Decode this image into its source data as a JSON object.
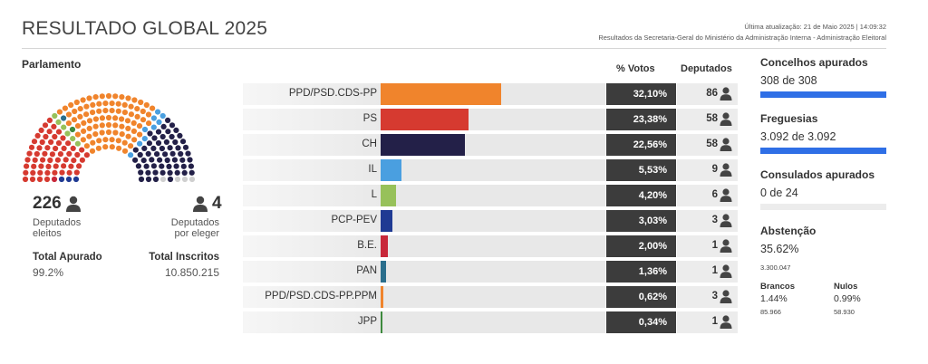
{
  "header": {
    "title": "RESULTADO GLOBAL 2025",
    "last_update": "Última atualização: 21 de Maio 2025 | 14:09:32",
    "source": "Resultados da Secretaria-Geral do Ministério da Administração Interna - Administração Eleitoral"
  },
  "parliament": {
    "title": "Parlamento",
    "elected_count": "226",
    "elected_label_1": "Deputados",
    "elected_label_2": "eleitos",
    "pending_count": "4",
    "pending_label_1": "Deputados",
    "pending_label_2": "por eleger",
    "total_apurado_label": "Total Apurado",
    "total_apurado_value": "99.2%",
    "total_inscritos_label": "Total Inscritos",
    "total_inscritos_value": "10.850.215",
    "seat_groups": [
      {
        "party": "PCP-PEV",
        "seats": 3,
        "color": "#1f3a93"
      },
      {
        "party": "B.E.",
        "seats": 1,
        "color": "#c8283a"
      },
      {
        "party": "PS",
        "seats": 58,
        "color": "#d63a30"
      },
      {
        "party": "L",
        "seats": 6,
        "color": "#97c15a"
      },
      {
        "party": "PAN",
        "seats": 1,
        "color": "#2a6e8c"
      },
      {
        "party": "JPP",
        "seats": 1,
        "color": "#3d8a3d"
      },
      {
        "party": "PPD/PSD.CDS-PP",
        "seats": 86,
        "color": "#f0842c"
      },
      {
        "party": "PPD/PSD.CDS-PP.PPM",
        "seats": 3,
        "color": "#f0842c"
      },
      {
        "party": "IL",
        "seats": 9,
        "color": "#4a9fe0"
      },
      {
        "party": "CH",
        "seats": 58,
        "color": "#232048"
      },
      {
        "party": "",
        "seats": 4,
        "color": "#cfcfcf"
      }
    ]
  },
  "results": {
    "col_votes": "% Votos",
    "col_seats": "Deputados",
    "rows": [
      {
        "party": "PPD/PSD.CDS-PP",
        "percent": "32,10%",
        "share": 32.1,
        "seats": "86",
        "color": "#f0842c"
      },
      {
        "party": "PS",
        "percent": "23,38%",
        "share": 23.38,
        "seats": "58",
        "color": "#d63a30"
      },
      {
        "party": "CH",
        "percent": "22,56%",
        "share": 22.56,
        "seats": "58",
        "color": "#232048"
      },
      {
        "party": "IL",
        "percent": "5,53%",
        "share": 5.53,
        "seats": "9",
        "color": "#4a9fe0"
      },
      {
        "party": "L",
        "percent": "4,20%",
        "share": 4.2,
        "seats": "6",
        "color": "#97c15a"
      },
      {
        "party": "PCP-PEV",
        "percent": "3,03%",
        "share": 3.03,
        "seats": "3",
        "color": "#1f3a93"
      },
      {
        "party": "B.E.",
        "percent": "2,00%",
        "share": 2.0,
        "seats": "1",
        "color": "#c8283a"
      },
      {
        "party": "PAN",
        "percent": "1,36%",
        "share": 1.36,
        "seats": "1",
        "color": "#2a6e8c"
      },
      {
        "party": "PPD/PSD.CDS-PP.PPM",
        "percent": "0,62%",
        "share": 0.62,
        "seats": "3",
        "color": "#f0842c"
      },
      {
        "party": "JPP",
        "percent": "0,34%",
        "share": 0.34,
        "seats": "1",
        "color": "#3d8a3d"
      }
    ]
  },
  "sidebar": {
    "concelhos_label": "Concelhos apurados",
    "concelhos_value": "308 de 308",
    "concelhos_fraction": 1.0,
    "freguesias_label": "Freguesias",
    "freguesias_value": "3.092 de 3.092",
    "freguesias_fraction": 1.0,
    "consulados_label": "Consulados apurados",
    "consulados_value": "0 de 24",
    "consulados_fraction": 0.0,
    "abstencao_label": "Abstenção",
    "abstencao_value": "35.62%",
    "abstencao_count": "3.300.047",
    "brancos_label": "Brancos",
    "brancos_value": "1.44%",
    "brancos_count": "85.966",
    "nulos_label": "Nulos",
    "nulos_value": "0.99%",
    "nulos_count": "58.930"
  },
  "colors": {
    "accent": "#2f6fe6",
    "pct_bg": "#3c3c3c"
  }
}
